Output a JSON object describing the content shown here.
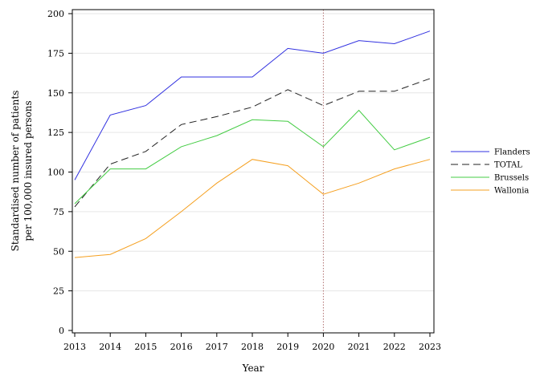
{
  "chart_data": {
    "type": "line",
    "title": "",
    "xlabel": "Year",
    "ylabel_lines": [
      "Standardised number of patients",
      "per 100,000 insured persons"
    ],
    "x": [
      2013,
      2014,
      2015,
      2016,
      2017,
      2018,
      2019,
      2020,
      2021,
      2022,
      2023
    ],
    "ylim": [
      0,
      200
    ],
    "yticks": [
      0,
      25,
      50,
      75,
      100,
      125,
      150,
      175,
      200
    ],
    "grid": "horizontal",
    "legend_position": "right",
    "reference_line": {
      "x": 2020,
      "color": "#b07070",
      "style": "dotted"
    },
    "series": [
      {
        "name": "Flanders",
        "color": "#3030e0",
        "dash": "solid",
        "values": [
          95,
          136,
          142,
          160,
          160,
          160,
          178,
          175,
          183,
          181,
          189
        ]
      },
      {
        "name": "TOTAL",
        "color": "#222222",
        "dash": "dashed",
        "values": [
          78,
          105,
          113,
          130,
          135,
          141,
          152,
          142,
          151,
          151,
          159
        ]
      },
      {
        "name": "Brussels",
        "color": "#44cc44",
        "dash": "solid",
        "values": [
          80,
          102,
          102,
          116,
          123,
          133,
          132,
          116,
          139,
          114,
          122
        ]
      },
      {
        "name": "Wallonia",
        "color": "#f5a020",
        "dash": "solid",
        "values": [
          46,
          48,
          58,
          75,
          93,
          108,
          104,
          86,
          93,
          102,
          108
        ]
      }
    ]
  }
}
